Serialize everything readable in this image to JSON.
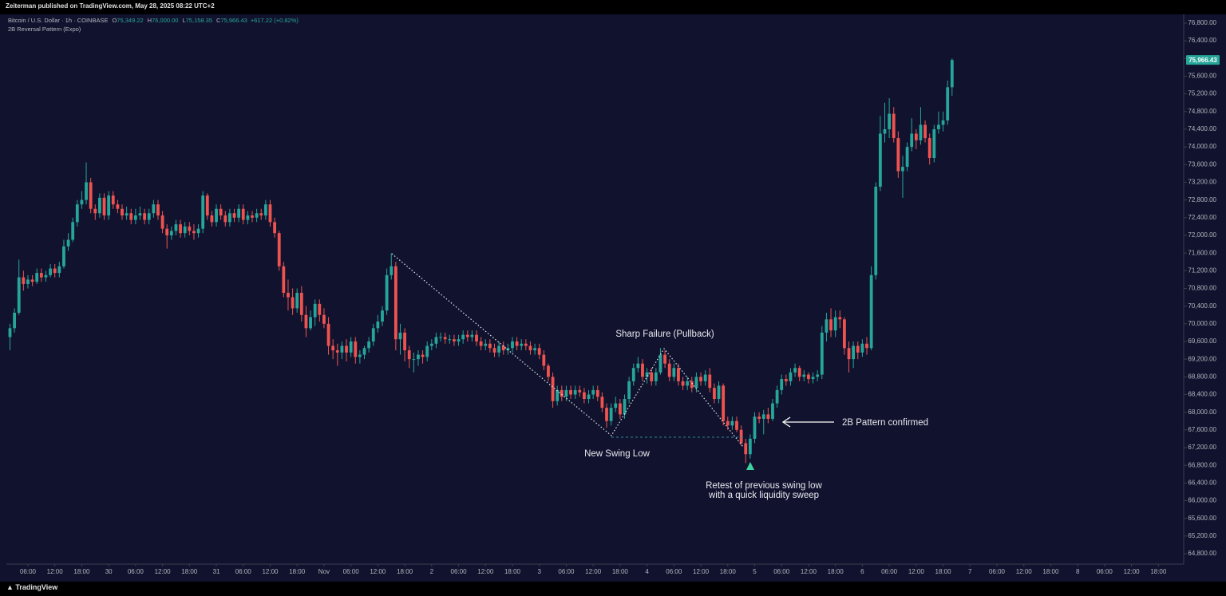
{
  "publish_line": "Zeiterman published on TradingView.com, May 28, 2025 08:22 UTC+2",
  "footer": "TradingView",
  "chart_data": {
    "type": "candlestick",
    "symbol": "Bitcoin / U.S. Dollar · 1h · COINBASE",
    "legend": [
      {
        "key": "O",
        "value": "75,349.22"
      },
      {
        "key": "H",
        "value": "76,000.00"
      },
      {
        "key": "L",
        "value": "75,158.35"
      },
      {
        "key": "C",
        "value": "75,966.43"
      }
    ],
    "change": "+617.22 (+0.82%)",
    "indicator": "2B Reversal Pattern (Expo)",
    "last_price_label": "75,966.43",
    "up_color": "#26a69a",
    "down_color": "#ef5350",
    "annotations": [
      "Sharp Failure (Pullback)",
      "New Swing Low",
      "Retest of previous swing low",
      "with a quick liquidity sweep",
      "2B Pattern confirmed"
    ],
    "open": [
      69700,
      69900,
      70250,
      71050,
      70900,
      71000,
      70950,
      71150,
      71050,
      71100,
      71250,
      71150,
      71300,
      71750,
      71900,
      72300,
      72700,
      72800,
      73200,
      72600,
      72500,
      72850,
      72450,
      72900,
      72700,
      72600,
      72450,
      72500,
      72350,
      72450,
      72500,
      72350,
      72500,
      72700,
      72450,
      72150,
      72000,
      72100,
      72250,
      72050,
      72200,
      72100,
      72050,
      72150,
      72900,
      72450,
      72300,
      72600,
      72450,
      72300,
      72500,
      72400,
      72600,
      72350,
      72450,
      72400,
      72500,
      72450,
      72700,
      72300,
      72050,
      71300,
      70700,
      70600,
      70350,
      70700,
      70200,
      69900,
      70150,
      70450,
      70200,
      70000,
      69500,
      69400,
      69350,
      69500,
      69350,
      69600,
      69250,
      69300,
      69450,
      69600,
      69900,
      70050,
      70300,
      71100,
      71300,
      69650,
      69800,
      69400,
      69200,
      69200,
      69300,
      69250,
      69500,
      69550,
      69700,
      69700,
      69650,
      69650,
      69600,
      69650,
      69750,
      69700,
      69750,
      69600,
      69500,
      69550,
      69450,
      69350,
      69500,
      69400,
      69450,
      69600,
      69500,
      69550,
      69500,
      69400,
      69450,
      69300,
      69050,
      68800,
      68250,
      68500,
      68350,
      68500,
      68400,
      68500,
      68450,
      68300,
      68400,
      68500,
      68350,
      68100,
      67800,
      68100,
      68200,
      67950,
      68300,
      68700,
      69000,
      69100,
      68800,
      68900,
      68700,
      68900,
      69300,
      69100,
      68800,
      69000,
      68700,
      68600,
      68700,
      68550,
      68800,
      68700,
      68850,
      68550,
      68300,
      68600,
      67800,
      67700,
      67800,
      67600,
      67300,
      67050,
      67400,
      67900,
      67850,
      67950,
      67850,
      68200,
      68500,
      68750,
      68700,
      68900,
      69000,
      68800,
      68850,
      68750,
      68800,
      68850,
      69800,
      70100,
      69850,
      70150,
      70100,
      69450,
      69200,
      69500,
      69350,
      69550,
      69450,
      71100,
      73100,
      74300,
      74400,
      74750,
      74200,
      73450,
      73550,
      74000,
      74300,
      74150,
      74500,
      74200,
      73750,
      74400,
      74500,
      74600,
      75349.22
    ],
    "high": [
      70000,
      70350,
      71450,
      71200,
      71100,
      71100,
      71250,
      71250,
      71200,
      71350,
      71350,
      71400,
      71900,
      72050,
      72400,
      72800,
      73000,
      73650,
      73300,
      72700,
      72950,
      72950,
      73000,
      73000,
      72800,
      72700,
      72650,
      72600,
      72600,
      72650,
      72600,
      72600,
      72800,
      72800,
      72550,
      72250,
      72200,
      72350,
      72350,
      72300,
      72300,
      72250,
      72250,
      73000,
      72950,
      72550,
      72700,
      72700,
      72550,
      72600,
      72600,
      72700,
      72700,
      72550,
      72550,
      72600,
      72600,
      72800,
      72800,
      72400,
      72100,
      71400,
      71000,
      70800,
      70800,
      70850,
      70400,
      70300,
      70550,
      70550,
      70350,
      70150,
      69650,
      69550,
      69600,
      69650,
      69700,
      69700,
      69400,
      69500,
      69700,
      70000,
      70200,
      70400,
      71250,
      71600,
      71400,
      70000,
      69900,
      69500,
      69350,
      69400,
      69400,
      69600,
      69650,
      69800,
      69800,
      69800,
      69750,
      69750,
      69750,
      69850,
      69850,
      69850,
      69850,
      69700,
      69650,
      69650,
      69550,
      69600,
      69600,
      69550,
      69700,
      69700,
      69650,
      69650,
      69600,
      69550,
      69550,
      69400,
      69100,
      68900,
      68600,
      68600,
      68600,
      68600,
      68600,
      68600,
      68550,
      68500,
      68600,
      68600,
      68450,
      68200,
      68200,
      68350,
      68300,
      68400,
      68800,
      69100,
      69250,
      69200,
      69000,
      69000,
      69000,
      69450,
      69400,
      69200,
      69100,
      69100,
      68800,
      68800,
      68800,
      68900,
      68900,
      68950,
      69000,
      68650,
      68700,
      68650,
      67900,
      67900,
      67900,
      67700,
      67400,
      67500,
      68000,
      68000,
      68050,
      68100,
      68300,
      68600,
      68850,
      68850,
      69000,
      69100,
      69050,
      68950,
      68900,
      68900,
      68950,
      69950,
      70250,
      70350,
      70300,
      70300,
      70150,
      69600,
      69600,
      69600,
      69650,
      69700,
      71300,
      73200,
      74700,
      75000,
      75100,
      74900,
      74350,
      73800,
      74100,
      74650,
      74400,
      74900,
      74600,
      74300,
      74500,
      74800,
      74800,
      75500,
      76000
    ],
    "low": [
      69400,
      69800,
      70200,
      70750,
      70800,
      70850,
      70900,
      70950,
      70950,
      71050,
      71050,
      71050,
      71250,
      71650,
      71850,
      72200,
      72600,
      72700,
      72500,
      72350,
      72400,
      72350,
      72350,
      72600,
      72500,
      72350,
      72350,
      72250,
      72250,
      72350,
      72250,
      72250,
      72400,
      72350,
      72050,
      71700,
      71900,
      72000,
      71950,
      71950,
      72000,
      71900,
      71950,
      72050,
      72350,
      72200,
      72200,
      72350,
      72200,
      72200,
      72300,
      72300,
      72250,
      72250,
      72300,
      72300,
      72350,
      72350,
      72200,
      71950,
      71200,
      70600,
      70300,
      70200,
      70250,
      70050,
      69700,
      69850,
      69950,
      70050,
      69900,
      69300,
      69200,
      69050,
      69200,
      69150,
      69250,
      69100,
      69100,
      69200,
      69350,
      69500,
      69800,
      69950,
      70200,
      71000,
      69400,
      69300,
      69150,
      69000,
      68900,
      69050,
      69100,
      69150,
      69400,
      69450,
      69600,
      69550,
      69550,
      69500,
      69500,
      69550,
      69600,
      69600,
      69500,
      69400,
      69400,
      69350,
      69250,
      69250,
      69300,
      69300,
      69350,
      69400,
      69400,
      69400,
      69300,
      69300,
      69200,
      68950,
      68700,
      68100,
      68150,
      68250,
      68250,
      68300,
      68300,
      68350,
      68200,
      68200,
      68300,
      68250,
      68000,
      67650,
      67700,
      68000,
      67850,
      67850,
      68200,
      68600,
      68900,
      68700,
      68650,
      68600,
      68600,
      68850,
      69000,
      68700,
      68700,
      68600,
      68500,
      68500,
      68450,
      68450,
      68600,
      68600,
      68450,
      68200,
      68200,
      67700,
      67600,
      67600,
      67550,
      67250,
      66850,
      66950,
      67300,
      67750,
      67500,
      67750,
      67800,
      68100,
      68400,
      68600,
      68600,
      68800,
      68700,
      68700,
      68650,
      68650,
      68700,
      68750,
      69600,
      69700,
      69700,
      69900,
      69300,
      68900,
      69000,
      69200,
      69250,
      69300,
      69400,
      71000,
      73000,
      74100,
      74200,
      74100,
      73300,
      72850,
      73450,
      73900,
      73950,
      74050,
      74100,
      73600,
      73650,
      74300,
      74350,
      74500,
      75158.35
    ],
    "close": [
      69900,
      70250,
      71050,
      70900,
      71000,
      70950,
      71150,
      71050,
      71100,
      71250,
      71150,
      71300,
      71750,
      71900,
      72300,
      72700,
      72800,
      73200,
      72600,
      72500,
      72850,
      72450,
      72900,
      72700,
      72600,
      72450,
      72500,
      72350,
      72450,
      72500,
      72350,
      72500,
      72700,
      72450,
      72150,
      72000,
      72100,
      72250,
      72050,
      72200,
      72100,
      72050,
      72150,
      72900,
      72450,
      72300,
      72600,
      72450,
      72300,
      72500,
      72400,
      72600,
      72350,
      72450,
      72400,
      72500,
      72450,
      72700,
      72300,
      72050,
      71300,
      70700,
      70600,
      70350,
      70700,
      70200,
      69900,
      70150,
      70450,
      70200,
      70000,
      69500,
      69400,
      69350,
      69500,
      69350,
      69600,
      69250,
      69300,
      69450,
      69600,
      69900,
      70050,
      70300,
      71100,
      71300,
      69650,
      69800,
      69400,
      69200,
      69200,
      69300,
      69250,
      69500,
      69550,
      69700,
      69700,
      69650,
      69650,
      69600,
      69650,
      69750,
      69700,
      69750,
      69600,
      69500,
      69550,
      69450,
      69350,
      69500,
      69400,
      69450,
      69600,
      69500,
      69550,
      69500,
      69400,
      69450,
      69300,
      69050,
      68800,
      68250,
      68500,
      68350,
      68500,
      68400,
      68500,
      68450,
      68300,
      68400,
      68500,
      68350,
      68100,
      67800,
      68100,
      68200,
      67950,
      68300,
      68700,
      69000,
      69100,
      68800,
      68900,
      68700,
      68900,
      69300,
      69100,
      68800,
      69000,
      68700,
      68600,
      68700,
      68550,
      68800,
      68700,
      68850,
      68550,
      68300,
      68600,
      67800,
      67700,
      67800,
      67600,
      67300,
      67050,
      67400,
      67900,
      67850,
      67950,
      67850,
      68200,
      68500,
      68750,
      68700,
      68900,
      69000,
      68800,
      68850,
      68750,
      68800,
      68850,
      69800,
      70100,
      69850,
      70150,
      70100,
      69450,
      69200,
      69500,
      69350,
      69550,
      69450,
      71100,
      73100,
      74300,
      74400,
      74750,
      74200,
      73450,
      73550,
      74000,
      74300,
      74150,
      74500,
      74200,
      73750,
      74400,
      74500,
      74600,
      75349.21,
      75966.43
    ],
    "ylim": [
      64565,
      76998
    ],
    "yticks": [
      {
        "value": 64800,
        "label": "64,800.00"
      },
      {
        "value": 65200,
        "label": "65,200.00"
      },
      {
        "value": 65600,
        "label": "65,600.00"
      },
      {
        "value": 66000,
        "label": "66,000.00"
      },
      {
        "value": 66400,
        "label": "66,400.00"
      },
      {
        "value": 66800,
        "label": "66,800.00"
      },
      {
        "value": 67200,
        "label": "67,200.00"
      },
      {
        "value": 67600,
        "label": "67,600.00"
      },
      {
        "value": 68000,
        "label": "68,000.00"
      },
      {
        "value": 68400,
        "label": "68,400.00"
      },
      {
        "value": 68800,
        "label": "68,800.00"
      },
      {
        "value": 69200,
        "label": "69,200.00"
      },
      {
        "value": 69600,
        "label": "69,600.00"
      },
      {
        "value": 70000,
        "label": "70,000.00"
      },
      {
        "value": 70400,
        "label": "70,400.00"
      },
      {
        "value": 70800,
        "label": "70,800.00"
      },
      {
        "value": 71200,
        "label": "71,200.00"
      },
      {
        "value": 71600,
        "label": "71,600.00"
      },
      {
        "value": 72000,
        "label": "72,000.00"
      },
      {
        "value": 72400,
        "label": "72,400.00"
      },
      {
        "value": 72800,
        "label": "72,800.00"
      },
      {
        "value": 73200,
        "label": "73,200.00"
      },
      {
        "value": 73600,
        "label": "73,600.00"
      },
      {
        "value": 74000,
        "label": "74,000.00"
      },
      {
        "value": 74400,
        "label": "74,400.00"
      },
      {
        "value": 74800,
        "label": "74,800.00"
      },
      {
        "value": 75200,
        "label": "75,200.00"
      },
      {
        "value": 75600,
        "label": "75,600.00"
      },
      {
        "value": 76000,
        "label": "76,000.00"
      },
      {
        "value": 76400,
        "label": "76,400.00"
      },
      {
        "value": 76800,
        "label": "76,800.00"
      }
    ],
    "xlim": [
      -0.8,
      261.1
    ],
    "xticks": [
      {
        "value": 4,
        "label": "06:00"
      },
      {
        "value": 10,
        "label": "12:00"
      },
      {
        "value": 16,
        "label": "18:00"
      },
      {
        "value": 22,
        "label": "30"
      },
      {
        "value": 28,
        "label": "06:00"
      },
      {
        "value": 34,
        "label": "12:00"
      },
      {
        "value": 40,
        "label": "18:00"
      },
      {
        "value": 46,
        "label": "31"
      },
      {
        "value": 52,
        "label": "06:00"
      },
      {
        "value": 58,
        "label": "12:00"
      },
      {
        "value": 64,
        "label": "18:00"
      },
      {
        "value": 70,
        "label": "Nov"
      },
      {
        "value": 76,
        "label": "06:00"
      },
      {
        "value": 82,
        "label": "12:00"
      },
      {
        "value": 88,
        "label": "18:00"
      },
      {
        "value": 94,
        "label": "2"
      },
      {
        "value": 100,
        "label": "06:00"
      },
      {
        "value": 106,
        "label": "12:00"
      },
      {
        "value": 112,
        "label": "18:00"
      },
      {
        "value": 118,
        "label": "3"
      },
      {
        "value": 124,
        "label": "06:00"
      },
      {
        "value": 130,
        "label": "12:00"
      },
      {
        "value": 136,
        "label": "18:00"
      },
      {
        "value": 142,
        "label": "4"
      },
      {
        "value": 148,
        "label": "06:00"
      },
      {
        "value": 154,
        "label": "12:00"
      },
      {
        "value": 160,
        "label": "18:00"
      },
      {
        "value": 166,
        "label": "5"
      },
      {
        "value": 172,
        "label": "06:00"
      },
      {
        "value": 178,
        "label": "12:00"
      },
      {
        "value": 184,
        "label": "18:00"
      },
      {
        "value": 190,
        "label": "6"
      },
      {
        "value": 196,
        "label": "06:00"
      },
      {
        "value": 202,
        "label": "12:00"
      },
      {
        "value": 208,
        "label": "18:00"
      },
      {
        "value": 214,
        "label": "7"
      },
      {
        "value": 220,
        "label": "06:00"
      },
      {
        "value": 226,
        "label": "12:00"
      },
      {
        "value": 232,
        "label": "18:00"
      },
      {
        "value": 238,
        "label": "8"
      },
      {
        "value": 244,
        "label": "06:00"
      },
      {
        "value": 250,
        "label": "12:00"
      },
      {
        "value": 256,
        "label": "18:00"
      }
    ]
  }
}
